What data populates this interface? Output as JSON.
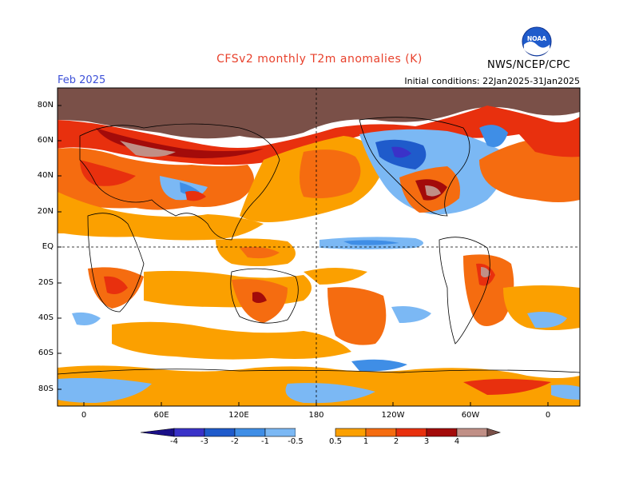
{
  "header": {
    "title": "CFSv2 monthly T2m anomalies (K)",
    "month": "Feb 2025",
    "agency": "NWS/NCEP/CPC",
    "initial_conditions": "Initial conditions: 22Jan2025-31Jan2025",
    "logo_text": "NOAA"
  },
  "map": {
    "lat_labels": [
      "80N",
      "60N",
      "40N",
      "20N",
      "EQ",
      "20S",
      "40S",
      "60S",
      "80S"
    ],
    "lon_labels": [
      "0",
      "60E",
      "120E",
      "180",
      "120W",
      "60W",
      "0"
    ]
  },
  "colorbar": {
    "tick_labels": [
      "-4",
      "-3",
      "-2",
      "-1",
      "-0.5",
      "0.5",
      "1",
      "2",
      "3",
      "4"
    ],
    "colors": {
      "below_-4": "#1a0f88",
      "-4_-3": "#3a32c8",
      "-3_-2": "#1f5bcb",
      "-2_-1": "#3f8ee6",
      "-1_-0.5": "#7bb8f4",
      "-0.5_0.5": "#ffffff",
      "0.5_1": "#fba000",
      "1_2": "#f56c10",
      "2_3": "#e8300e",
      "3_4": "#a30b0a",
      "4_5": "#c08f86",
      "above_5": "#7a5048"
    }
  }
}
